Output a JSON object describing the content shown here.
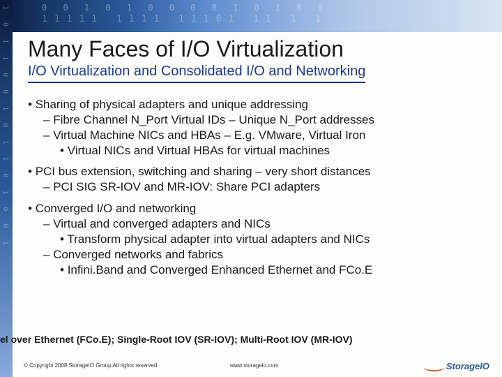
{
  "banner": {
    "digits1": "0 0 1  0 1 0  0   0 0 1  0 1 0  0",
    "digits2": "11111 1111  11101 11 1 1"
  },
  "left_digits": "1 0 1 1 0 0 1 0 1 1 0 1 0 0 1",
  "title": "Many Faces of I/O Virtualization",
  "subtitle": "I/O Virtualization and Consolidated I/O and Networking",
  "bullets": [
    {
      "level": 1,
      "text": "Sharing of physical adapters and unique addressing"
    },
    {
      "level": 2,
      "text": "Fibre Channel N_Port Virtual IDs – Unique N_Port addresses"
    },
    {
      "level": 2,
      "text": "Virtual Machine NICs and HBAs – E.g. VMware, Virtual Iron"
    },
    {
      "level": 3,
      "text": "Virtual NICs and Virtual HBAs for virtual machines"
    },
    {
      "level": 1,
      "text": "PCI bus extension, switching and sharing – very short distances"
    },
    {
      "level": 2,
      "text": "PCI SIG SR-IOV and MR-IOV: Share PCI adapters"
    },
    {
      "level": 1,
      "text": "Converged I/O and networking"
    },
    {
      "level": 2,
      "text": "Virtual and converged adapters and NICs"
    },
    {
      "level": 3,
      "text": "Transform physical adapter into virtual adapters and NICs"
    },
    {
      "level": 2,
      "text": "Converged networks and fabrics"
    },
    {
      "level": 3,
      "text": "Infini.Band and Converged Enhanced Ethernet and FCo.E"
    }
  ],
  "footer_note": "el over Ethernet (FCo.E); Single-Root IOV (SR-IOV); Multi-Root IOV (MR-IOV)",
  "copyright": "© Copyright 2008 StorageIO Group All rights reserved.",
  "url": "www.storageio.com",
  "logo_text": "StorageIO",
  "colors": {
    "subtitle": "#1a3a8a",
    "text": "#1a1a1a",
    "logo": "#2a5a9a",
    "swoosh": "#c06030"
  }
}
